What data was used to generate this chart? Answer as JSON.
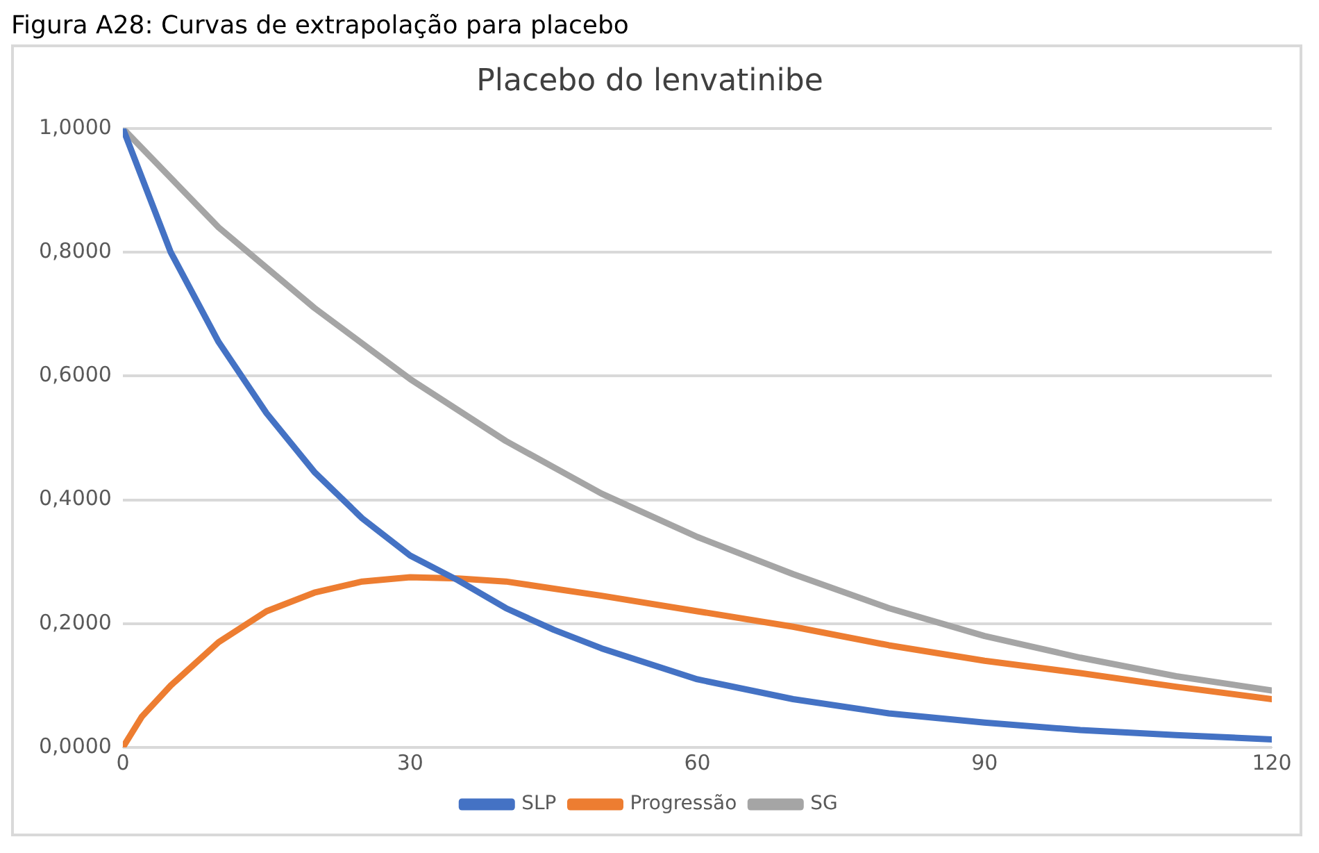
{
  "chart_data": {
    "type": "line",
    "title": "Placebo do lenvatinibe",
    "annotations": [
      "Figura A28: Curvas de extrapolação para placebo"
    ],
    "xlim": [
      0,
      120
    ],
    "xticks": [
      0,
      30,
      60,
      90,
      120
    ],
    "ylim": [
      0,
      1
    ],
    "yticks": [
      {
        "value": 0,
        "label": "0,0000"
      },
      {
        "value": 0.2,
        "label": "0,2000"
      },
      {
        "value": 0.4,
        "label": "0,4000"
      },
      {
        "value": 0.6,
        "label": "0,6000"
      },
      {
        "value": 0.8,
        "label": "0,8000"
      },
      {
        "value": 1,
        "label": "1,0000"
      }
    ],
    "grid": "y",
    "legend": "bottom",
    "marker": "none",
    "line_style": "solid",
    "series": [
      {
        "name": "SLP",
        "color": "#4472c4",
        "x": [
          0,
          5,
          10,
          15,
          20,
          25,
          30,
          35,
          40,
          45,
          50,
          60,
          70,
          80,
          90,
          100,
          110,
          120
        ],
        "values": [
          1,
          0.8,
          0.655,
          0.54,
          0.445,
          0.37,
          0.31,
          0.27,
          0.225,
          0.19,
          0.16,
          0.11,
          0.078,
          0.055,
          0.04,
          0.028,
          0.02,
          0.013
        ]
      },
      {
        "name": "Progressão",
        "color": "#ed7d31",
        "x": [
          0,
          2,
          5,
          10,
          15,
          20,
          25,
          30,
          35,
          40,
          50,
          60,
          70,
          80,
          90,
          100,
          110,
          120
        ],
        "values": [
          0,
          0.05,
          0.1,
          0.17,
          0.22,
          0.25,
          0.268,
          0.275,
          0.273,
          0.268,
          0.245,
          0.22,
          0.195,
          0.165,
          0.14,
          0.12,
          0.098,
          0.078
        ]
      },
      {
        "name": "SG",
        "color": "#a5a5a5",
        "x": [
          0,
          10,
          20,
          30,
          40,
          50,
          60,
          70,
          80,
          90,
          100,
          110,
          120
        ],
        "values": [
          1,
          0.84,
          0.71,
          0.595,
          0.495,
          0.41,
          0.34,
          0.28,
          0.225,
          0.18,
          0.145,
          0.115,
          0.092
        ]
      }
    ]
  }
}
